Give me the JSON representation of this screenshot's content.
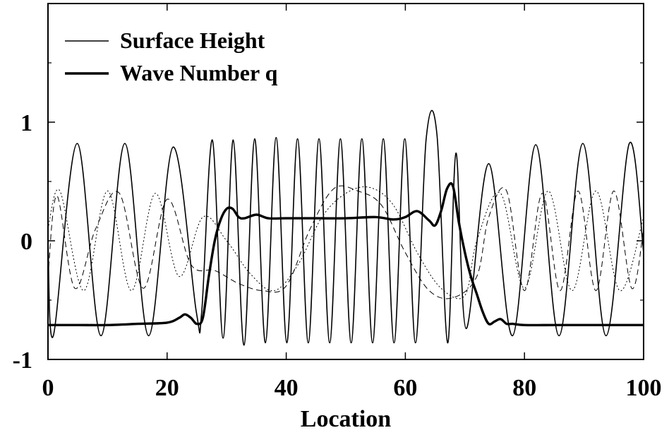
{
  "chart_data": {
    "type": "line",
    "title": "",
    "xlabel": "Location",
    "ylabel": "",
    "xlim": [
      0,
      100
    ],
    "ylim": [
      -1,
      2
    ],
    "x_ticks": [
      {
        "value": 0,
        "label": "0"
      },
      {
        "value": 20,
        "label": "20"
      },
      {
        "value": 40,
        "label": "40"
      },
      {
        "value": 60,
        "label": "60"
      },
      {
        "value": 80,
        "label": "80"
      },
      {
        "value": 100,
        "label": "100"
      }
    ],
    "y_ticks": [
      {
        "value": -1,
        "label": "-1"
      },
      {
        "value": 0,
        "label": "0"
      },
      {
        "value": 1,
        "label": "1"
      }
    ],
    "legend": {
      "position": "top-left",
      "entries": [
        {
          "label": "Surface Height",
          "style": "thin"
        },
        {
          "label": "Wave Number q",
          "style": "thick"
        }
      ]
    },
    "grid": false,
    "series": [
      {
        "name": "Surface Height",
        "style": "thin-solid",
        "description": "Oscillation amplitude ~0.82; wavelength ~8.5 outside 25-70, ~3.6 between 28-68",
        "x": [
          0,
          0.9,
          4.9,
          8.9,
          12.9,
          16.9,
          21.0,
          24.9,
          25.8,
          27.6,
          29.4,
          31.1,
          32.9,
          34.7,
          36.5,
          38.3,
          40.1,
          41.9,
          43.7,
          45.5,
          47.3,
          49.1,
          50.9,
          52.7,
          54.5,
          56.3,
          58.1,
          59.9,
          61.7,
          63.5,
          65.3,
          67.1,
          68.5,
          70.2,
          74.0,
          78.0,
          81.9,
          85.8,
          89.8,
          93.7,
          97.6,
          100
        ],
        "y": [
          0.0,
          -0.8,
          0.82,
          -0.8,
          0.82,
          -0.8,
          0.79,
          -0.6,
          -0.6,
          0.85,
          -0.82,
          0.85,
          -0.88,
          0.86,
          -0.86,
          0.87,
          -0.86,
          0.86,
          -0.86,
          0.86,
          -0.86,
          0.86,
          -0.86,
          0.86,
          -0.86,
          0.86,
          -0.86,
          0.86,
          -0.86,
          0.86,
          0.9,
          -0.86,
          0.74,
          -0.74,
          0.65,
          -0.8,
          0.81,
          -0.8,
          0.82,
          -0.8,
          0.82,
          -0.1
        ]
      },
      {
        "name": "Wave Number q",
        "style": "thick-solid",
        "x": [
          0,
          5,
          10,
          15,
          20,
          22,
          23,
          24,
          25,
          26,
          27,
          28,
          29,
          30,
          31,
          32,
          33,
          35,
          37,
          40,
          45,
          50,
          55,
          58,
          60,
          62,
          64,
          65,
          66,
          67,
          68,
          69,
          70,
          71,
          72,
          73,
          74,
          75,
          76,
          77,
          78,
          80,
          85,
          90,
          95,
          100
        ],
        "y": [
          -0.71,
          -0.71,
          -0.71,
          -0.7,
          -0.69,
          -0.65,
          -0.62,
          -0.65,
          -0.7,
          -0.65,
          -0.3,
          0.0,
          0.18,
          0.27,
          0.27,
          0.2,
          0.19,
          0.22,
          0.19,
          0.19,
          0.19,
          0.19,
          0.2,
          0.18,
          0.2,
          0.25,
          0.17,
          0.13,
          0.25,
          0.44,
          0.46,
          0.15,
          -0.1,
          -0.3,
          -0.45,
          -0.6,
          -0.7,
          -0.68,
          -0.66,
          -0.7,
          -0.7,
          -0.71,
          -0.71,
          -0.71,
          -0.71,
          -0.71
        ]
      },
      {
        "name": "",
        "style": "dashed",
        "x": [
          0,
          1.5,
          4.5,
          8,
          12,
          16,
          20,
          24,
          28,
          32,
          36,
          40,
          44,
          48,
          52,
          56,
          60,
          64,
          68,
          72,
          74,
          77,
          80,
          83,
          86,
          89,
          92,
          95,
          98,
          100
        ],
        "y": [
          -0.3,
          0.38,
          -0.4,
          0.1,
          0.4,
          -0.4,
          0.35,
          -0.2,
          -0.25,
          -0.36,
          -0.42,
          -0.38,
          0.1,
          0.44,
          0.42,
          0.3,
          -0.1,
          -0.42,
          -0.48,
          -0.3,
          0.2,
          0.42,
          -0.42,
          0.4,
          -0.42,
          0.42,
          -0.42,
          0.42,
          -0.4,
          0.1
        ]
      },
      {
        "name": "",
        "style": "dotted",
        "x": [
          0,
          2,
          6,
          10,
          14,
          18,
          22,
          26,
          30,
          34,
          38,
          42,
          46,
          50,
          54,
          58,
          62,
          66,
          70,
          72,
          76,
          80,
          84,
          88,
          92,
          96,
          100
        ],
        "y": [
          0.1,
          0.42,
          -0.42,
          0.42,
          -0.42,
          0.4,
          -0.3,
          0.2,
          0.0,
          -0.28,
          -0.42,
          -0.2,
          0.2,
          0.4,
          0.45,
          0.3,
          -0.1,
          -0.4,
          -0.46,
          0.0,
          0.4,
          -0.4,
          0.42,
          -0.42,
          0.42,
          -0.42,
          0.2
        ]
      }
    ]
  }
}
